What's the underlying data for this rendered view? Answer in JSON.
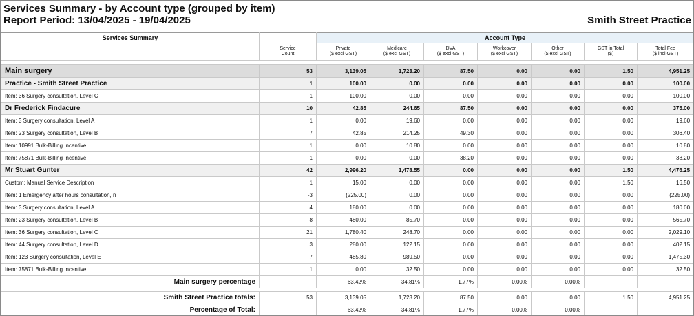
{
  "header": {
    "title": "Services Summary - by Account type (grouped by item)",
    "period": "Report Period: 13/04/2025 - 19/04/2025",
    "practice": "Smith Street Practice"
  },
  "groups": {
    "summary": "Services Summary",
    "account_type": "Account Type"
  },
  "columns": [
    [
      "Service",
      "Count"
    ],
    [
      "Private",
      "($ excl GST)"
    ],
    [
      "Medicare",
      "($ excl GST)"
    ],
    [
      "DVA",
      "($ excl GST)"
    ],
    [
      "Workcover",
      "($ excl GST)"
    ],
    [
      "Other",
      "($ excl GST)"
    ],
    [
      "GST in Total",
      "($)"
    ],
    [
      "Total Fee",
      "($ incl GST)"
    ]
  ],
  "rows": [
    {
      "type": "main",
      "label": "Main surgery",
      "v": [
        "53",
        "3,139.05",
        "1,723.20",
        "87.50",
        "0.00",
        "0.00",
        "1.50",
        "4,951.25"
      ]
    },
    {
      "type": "sub",
      "label": "Practice - Smith Street Practice",
      "v": [
        "1",
        "100.00",
        "0.00",
        "0.00",
        "0.00",
        "0.00",
        "0.00",
        "100.00"
      ]
    },
    {
      "type": "item",
      "label": "Item: 36 Surgery consultation, Level C",
      "v": [
        "1",
        "100.00",
        "0.00",
        "0.00",
        "0.00",
        "0.00",
        "0.00",
        "100.00"
      ]
    },
    {
      "type": "sub",
      "label": "Dr Frederick Findacure",
      "v": [
        "10",
        "42.85",
        "244.65",
        "87.50",
        "0.00",
        "0.00",
        "0.00",
        "375.00"
      ]
    },
    {
      "type": "item",
      "label": "Item: 3 Surgery consultation, Level A",
      "v": [
        "1",
        "0.00",
        "19.60",
        "0.00",
        "0.00",
        "0.00",
        "0.00",
        "19.60"
      ]
    },
    {
      "type": "item",
      "label": "Item: 23 Surgery consultation, Level B",
      "v": [
        "7",
        "42.85",
        "214.25",
        "49.30",
        "0.00",
        "0.00",
        "0.00",
        "306.40"
      ]
    },
    {
      "type": "item",
      "label": "Item: 10991 Bulk-Billing Incentive",
      "v": [
        "1",
        "0.00",
        "10.80",
        "0.00",
        "0.00",
        "0.00",
        "0.00",
        "10.80"
      ]
    },
    {
      "type": "item",
      "label": "Item: 75871 Bulk-Billing Incentive",
      "v": [
        "1",
        "0.00",
        "0.00",
        "38.20",
        "0.00",
        "0.00",
        "0.00",
        "38.20"
      ]
    },
    {
      "type": "sub",
      "label": "Mr Stuart Gunter",
      "v": [
        "42",
        "2,996.20",
        "1,478.55",
        "0.00",
        "0.00",
        "0.00",
        "1.50",
        "4,476.25"
      ]
    },
    {
      "type": "item",
      "label": "Custom: Manual Service Description",
      "v": [
        "1",
        "15.00",
        "0.00",
        "0.00",
        "0.00",
        "0.00",
        "1.50",
        "16.50"
      ]
    },
    {
      "type": "item",
      "label": "Item: 1 Emergency after hours consultation, n",
      "v": [
        "-3",
        "(225.00)",
        "0.00",
        "0.00",
        "0.00",
        "0.00",
        "0.00",
        "(225.00)"
      ]
    },
    {
      "type": "item",
      "label": "Item: 3 Surgery consultation, Level A",
      "v": [
        "4",
        "180.00",
        "0.00",
        "0.00",
        "0.00",
        "0.00",
        "0.00",
        "180.00"
      ]
    },
    {
      "type": "item",
      "label": "Item: 23 Surgery consultation, Level B",
      "v": [
        "8",
        "480.00",
        "85.70",
        "0.00",
        "0.00",
        "0.00",
        "0.00",
        "565.70"
      ]
    },
    {
      "type": "item",
      "label": "Item: 36 Surgery consultation, Level C",
      "v": [
        "21",
        "1,780.40",
        "248.70",
        "0.00",
        "0.00",
        "0.00",
        "0.00",
        "2,029.10"
      ]
    },
    {
      "type": "item",
      "label": "Item: 44 Surgery consultation, Level D",
      "v": [
        "3",
        "280.00",
        "122.15",
        "0.00",
        "0.00",
        "0.00",
        "0.00",
        "402.15"
      ]
    },
    {
      "type": "item",
      "label": "Item: 123 Surgery consultation, Level E",
      "v": [
        "7",
        "485.80",
        "989.50",
        "0.00",
        "0.00",
        "0.00",
        "0.00",
        "1,475.30"
      ]
    },
    {
      "type": "item",
      "label": "Item: 75871 Bulk-Billing Incentive",
      "v": [
        "1",
        "0.00",
        "32.50",
        "0.00",
        "0.00",
        "0.00",
        "0.00",
        "32.50"
      ]
    },
    {
      "type": "pct",
      "label": "Main surgery percentage",
      "v": [
        "",
        "63.42%",
        "34.81%",
        "1.77%",
        "0.00%",
        "0.00%",
        "",
        ""
      ]
    }
  ],
  "totals": {
    "label": "Smith Street Practice totals:",
    "v": [
      "53",
      "3,139.05",
      "1,723.20",
      "87.50",
      "0.00",
      "0.00",
      "1.50",
      "4,951.25"
    ]
  },
  "percent_total": {
    "label": "Percentage of Total:",
    "v": [
      "",
      "63.42%",
      "34.81%",
      "1.77%",
      "0.00%",
      "0.00%",
      "",
      ""
    ]
  }
}
